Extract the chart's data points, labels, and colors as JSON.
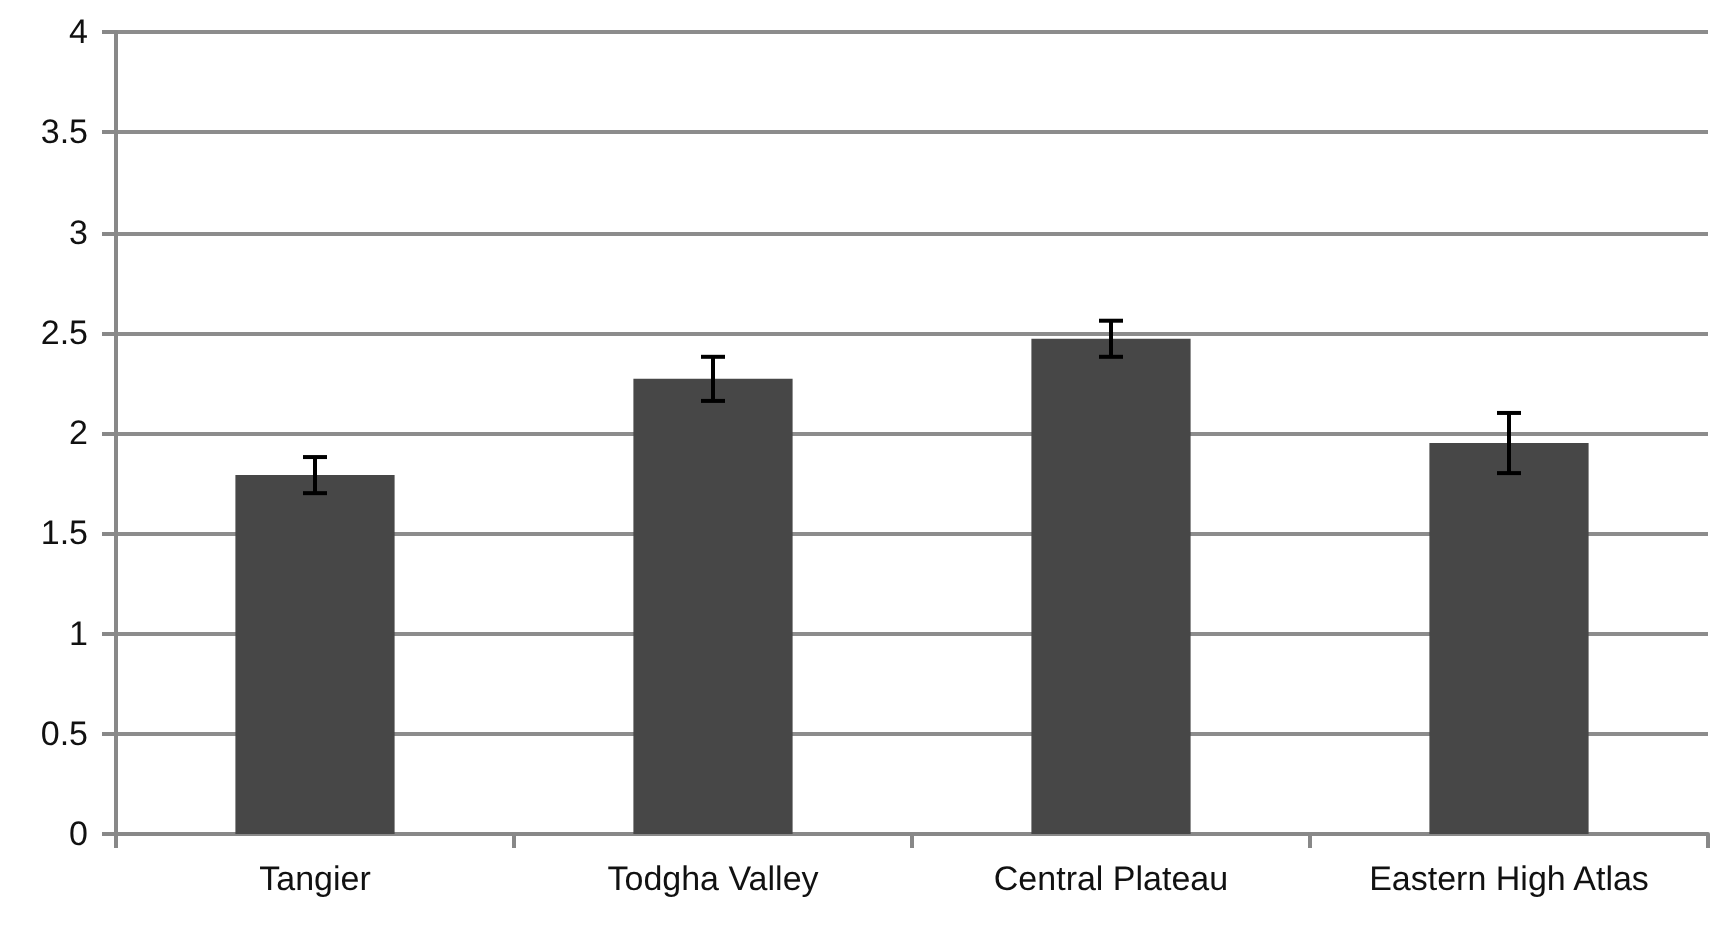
{
  "chart_data": {
    "type": "bar",
    "categories": [
      "Tangier",
      "Todgha Valley",
      "Central Plateau",
      "Eastern High Atlas"
    ],
    "values": [
      1.79,
      2.27,
      2.47,
      1.95
    ],
    "errors": [
      0.09,
      0.11,
      0.09,
      0.15
    ],
    "color": "#474747",
    "ylim": [
      0,
      4
    ],
    "yticks": [
      0,
      0.5,
      1,
      1.5,
      2,
      2.5,
      3,
      3.5,
      4
    ],
    "grid": "y"
  }
}
